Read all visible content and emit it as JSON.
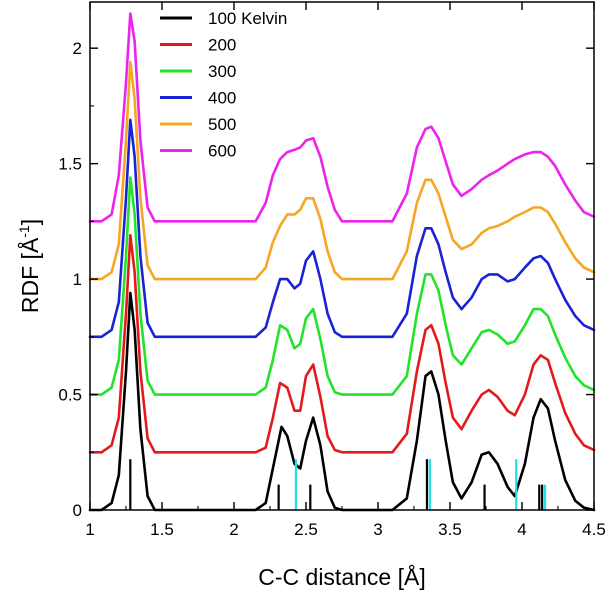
{
  "chart_data": {
    "type": "line",
    "xlabel": "C-C distance [Å]",
    "ylabel_main": "RDF [Å",
    "ylabel_sup": "-1",
    "ylabel_close": "]",
    "xlim": [
      1,
      4.5
    ],
    "ylim": [
      0,
      2.2
    ],
    "x_ticks": [
      1,
      1.5,
      2,
      2.5,
      3,
      3.5,
      4,
      4.5
    ],
    "x_tick_labels": [
      "1",
      "1.5",
      "2",
      "2.5",
      "3",
      "3.5",
      "4",
      "4.5"
    ],
    "y_ticks": [
      0,
      0.5,
      1,
      1.5,
      2
    ],
    "y_tick_labels": [
      "0",
      "0.5",
      "1",
      "1.5",
      "2"
    ],
    "legend_position": "top-left",
    "series": [
      {
        "name": "100 Kelvin",
        "color": "#000000",
        "offset": 0,
        "points": [
          [
            1.0,
            0
          ],
          [
            1.08,
            0
          ],
          [
            1.15,
            0.03
          ],
          [
            1.2,
            0.15
          ],
          [
            1.25,
            0.6
          ],
          [
            1.28,
            0.94
          ],
          [
            1.31,
            0.78
          ],
          [
            1.35,
            0.35
          ],
          [
            1.4,
            0.06
          ],
          [
            1.45,
            0
          ],
          [
            2.15,
            0
          ],
          [
            2.22,
            0.03
          ],
          [
            2.27,
            0.18
          ],
          [
            2.33,
            0.36
          ],
          [
            2.37,
            0.32
          ],
          [
            2.42,
            0.2
          ],
          [
            2.46,
            0.18
          ],
          [
            2.5,
            0.3
          ],
          [
            2.55,
            0.4
          ],
          [
            2.6,
            0.28
          ],
          [
            2.65,
            0.08
          ],
          [
            2.7,
            0.01
          ],
          [
            2.75,
            0
          ],
          [
            3.1,
            0
          ],
          [
            3.2,
            0.05
          ],
          [
            3.27,
            0.3
          ],
          [
            3.33,
            0.58
          ],
          [
            3.37,
            0.6
          ],
          [
            3.42,
            0.5
          ],
          [
            3.47,
            0.3
          ],
          [
            3.52,
            0.12
          ],
          [
            3.58,
            0.05
          ],
          [
            3.65,
            0.12
          ],
          [
            3.72,
            0.24
          ],
          [
            3.77,
            0.25
          ],
          [
            3.83,
            0.2
          ],
          [
            3.9,
            0.1
          ],
          [
            3.95,
            0.06
          ],
          [
            4.02,
            0.2
          ],
          [
            4.08,
            0.4
          ],
          [
            4.13,
            0.48
          ],
          [
            4.18,
            0.44
          ],
          [
            4.23,
            0.3
          ],
          [
            4.3,
            0.13
          ],
          [
            4.37,
            0.04
          ],
          [
            4.43,
            0.01
          ],
          [
            4.5,
            0
          ]
        ]
      },
      {
        "name": "200",
        "color": "#e31a1c",
        "offset": 0.25,
        "points": [
          [
            1.0,
            0
          ],
          [
            1.08,
            0
          ],
          [
            1.15,
            0.03
          ],
          [
            1.2,
            0.15
          ],
          [
            1.25,
            0.6
          ],
          [
            1.28,
            0.94
          ],
          [
            1.31,
            0.78
          ],
          [
            1.35,
            0.35
          ],
          [
            1.4,
            0.06
          ],
          [
            1.45,
            0
          ],
          [
            2.15,
            0
          ],
          [
            2.22,
            0.02
          ],
          [
            2.27,
            0.15
          ],
          [
            2.32,
            0.3
          ],
          [
            2.37,
            0.28
          ],
          [
            2.42,
            0.18
          ],
          [
            2.46,
            0.18
          ],
          [
            2.5,
            0.33
          ],
          [
            2.55,
            0.38
          ],
          [
            2.6,
            0.24
          ],
          [
            2.65,
            0.07
          ],
          [
            2.7,
            0.01
          ],
          [
            2.75,
            0
          ],
          [
            3.1,
            0
          ],
          [
            3.2,
            0.08
          ],
          [
            3.27,
            0.35
          ],
          [
            3.33,
            0.53
          ],
          [
            3.37,
            0.55
          ],
          [
            3.42,
            0.47
          ],
          [
            3.47,
            0.3
          ],
          [
            3.52,
            0.15
          ],
          [
            3.58,
            0.1
          ],
          [
            3.65,
            0.18
          ],
          [
            3.72,
            0.25
          ],
          [
            3.77,
            0.27
          ],
          [
            3.83,
            0.24
          ],
          [
            3.9,
            0.18
          ],
          [
            3.95,
            0.16
          ],
          [
            4.02,
            0.25
          ],
          [
            4.08,
            0.38
          ],
          [
            4.13,
            0.42
          ],
          [
            4.18,
            0.4
          ],
          [
            4.23,
            0.3
          ],
          [
            4.3,
            0.17
          ],
          [
            4.37,
            0.08
          ],
          [
            4.43,
            0.03
          ],
          [
            4.5,
            0.01
          ]
        ]
      },
      {
        "name": "300",
        "color": "#22e32a",
        "offset": 0.5,
        "points": [
          [
            1.0,
            0
          ],
          [
            1.08,
            0
          ],
          [
            1.15,
            0.03
          ],
          [
            1.2,
            0.15
          ],
          [
            1.25,
            0.6
          ],
          [
            1.28,
            0.94
          ],
          [
            1.31,
            0.78
          ],
          [
            1.35,
            0.35
          ],
          [
            1.4,
            0.06
          ],
          [
            1.45,
            0
          ],
          [
            2.15,
            0
          ],
          [
            2.22,
            0.03
          ],
          [
            2.27,
            0.15
          ],
          [
            2.32,
            0.3
          ],
          [
            2.37,
            0.28
          ],
          [
            2.42,
            0.2
          ],
          [
            2.46,
            0.22
          ],
          [
            2.5,
            0.33
          ],
          [
            2.55,
            0.37
          ],
          [
            2.6,
            0.24
          ],
          [
            2.65,
            0.08
          ],
          [
            2.7,
            0.01
          ],
          [
            2.75,
            0
          ],
          [
            3.1,
            0
          ],
          [
            3.2,
            0.08
          ],
          [
            3.27,
            0.35
          ],
          [
            3.33,
            0.52
          ],
          [
            3.37,
            0.52
          ],
          [
            3.42,
            0.45
          ],
          [
            3.47,
            0.3
          ],
          [
            3.52,
            0.17
          ],
          [
            3.58,
            0.13
          ],
          [
            3.65,
            0.2
          ],
          [
            3.72,
            0.27
          ],
          [
            3.77,
            0.28
          ],
          [
            3.83,
            0.26
          ],
          [
            3.9,
            0.22
          ],
          [
            3.95,
            0.23
          ],
          [
            4.02,
            0.3
          ],
          [
            4.08,
            0.37
          ],
          [
            4.13,
            0.37
          ],
          [
            4.18,
            0.34
          ],
          [
            4.23,
            0.26
          ],
          [
            4.3,
            0.16
          ],
          [
            4.37,
            0.08
          ],
          [
            4.43,
            0.04
          ],
          [
            4.5,
            0.02
          ]
        ]
      },
      {
        "name": "400",
        "color": "#1a22d8",
        "offset": 0.75,
        "points": [
          [
            1.0,
            0
          ],
          [
            1.08,
            0
          ],
          [
            1.15,
            0.03
          ],
          [
            1.2,
            0.15
          ],
          [
            1.25,
            0.6
          ],
          [
            1.28,
            0.94
          ],
          [
            1.31,
            0.78
          ],
          [
            1.35,
            0.35
          ],
          [
            1.4,
            0.06
          ],
          [
            1.45,
            0
          ],
          [
            2.15,
            0
          ],
          [
            2.22,
            0.04
          ],
          [
            2.27,
            0.15
          ],
          [
            2.32,
            0.25
          ],
          [
            2.37,
            0.25
          ],
          [
            2.42,
            0.21
          ],
          [
            2.46,
            0.23
          ],
          [
            2.5,
            0.33
          ],
          [
            2.55,
            0.37
          ],
          [
            2.6,
            0.25
          ],
          [
            2.65,
            0.1
          ],
          [
            2.7,
            0.02
          ],
          [
            2.75,
            0
          ],
          [
            3.1,
            0
          ],
          [
            3.2,
            0.1
          ],
          [
            3.27,
            0.35
          ],
          [
            3.33,
            0.47
          ],
          [
            3.37,
            0.47
          ],
          [
            3.42,
            0.4
          ],
          [
            3.47,
            0.28
          ],
          [
            3.52,
            0.17
          ],
          [
            3.58,
            0.12
          ],
          [
            3.65,
            0.17
          ],
          [
            3.72,
            0.25
          ],
          [
            3.77,
            0.27
          ],
          [
            3.83,
            0.27
          ],
          [
            3.9,
            0.24
          ],
          [
            3.95,
            0.25
          ],
          [
            4.02,
            0.3
          ],
          [
            4.08,
            0.34
          ],
          [
            4.13,
            0.35
          ],
          [
            4.18,
            0.32
          ],
          [
            4.23,
            0.25
          ],
          [
            4.3,
            0.16
          ],
          [
            4.37,
            0.09
          ],
          [
            4.43,
            0.05
          ],
          [
            4.5,
            0.03
          ]
        ]
      },
      {
        "name": "500",
        "color": "#f5a623",
        "offset": 1.0,
        "points": [
          [
            1.0,
            0
          ],
          [
            1.08,
            0
          ],
          [
            1.15,
            0.03
          ],
          [
            1.2,
            0.15
          ],
          [
            1.25,
            0.6
          ],
          [
            1.28,
            0.94
          ],
          [
            1.31,
            0.78
          ],
          [
            1.35,
            0.35
          ],
          [
            1.4,
            0.06
          ],
          [
            1.45,
            0
          ],
          [
            2.15,
            0
          ],
          [
            2.22,
            0.05
          ],
          [
            2.27,
            0.16
          ],
          [
            2.32,
            0.23
          ],
          [
            2.37,
            0.28
          ],
          [
            2.42,
            0.28
          ],
          [
            2.46,
            0.3
          ],
          [
            2.5,
            0.35
          ],
          [
            2.55,
            0.35
          ],
          [
            2.6,
            0.26
          ],
          [
            2.65,
            0.12
          ],
          [
            2.7,
            0.03
          ],
          [
            2.75,
            0
          ],
          [
            3.1,
            0
          ],
          [
            3.2,
            0.12
          ],
          [
            3.27,
            0.33
          ],
          [
            3.33,
            0.43
          ],
          [
            3.37,
            0.43
          ],
          [
            3.42,
            0.37
          ],
          [
            3.47,
            0.27
          ],
          [
            3.52,
            0.17
          ],
          [
            3.58,
            0.13
          ],
          [
            3.65,
            0.15
          ],
          [
            3.72,
            0.2
          ],
          [
            3.77,
            0.22
          ],
          [
            3.83,
            0.23
          ],
          [
            3.9,
            0.25
          ],
          [
            3.95,
            0.27
          ],
          [
            4.02,
            0.29
          ],
          [
            4.08,
            0.31
          ],
          [
            4.13,
            0.31
          ],
          [
            4.18,
            0.29
          ],
          [
            4.23,
            0.24
          ],
          [
            4.3,
            0.16
          ],
          [
            4.37,
            0.09
          ],
          [
            4.43,
            0.05
          ],
          [
            4.5,
            0.03
          ]
        ]
      },
      {
        "name": "600",
        "color": "#ee22ee",
        "offset": 1.25,
        "points": [
          [
            1.0,
            0
          ],
          [
            1.08,
            0
          ],
          [
            1.15,
            0.03
          ],
          [
            1.2,
            0.2
          ],
          [
            1.25,
            0.6
          ],
          [
            1.28,
            0.9
          ],
          [
            1.31,
            0.78
          ],
          [
            1.35,
            0.35
          ],
          [
            1.4,
            0.06
          ],
          [
            1.45,
            0
          ],
          [
            2.15,
            0
          ],
          [
            2.22,
            0.08
          ],
          [
            2.27,
            0.2
          ],
          [
            2.32,
            0.27
          ],
          [
            2.37,
            0.3
          ],
          [
            2.42,
            0.31
          ],
          [
            2.46,
            0.32
          ],
          [
            2.5,
            0.35
          ],
          [
            2.55,
            0.36
          ],
          [
            2.6,
            0.28
          ],
          [
            2.65,
            0.15
          ],
          [
            2.7,
            0.05
          ],
          [
            2.75,
            0
          ],
          [
            3.1,
            0
          ],
          [
            3.2,
            0.12
          ],
          [
            3.27,
            0.32
          ],
          [
            3.33,
            0.4
          ],
          [
            3.37,
            0.41
          ],
          [
            3.42,
            0.36
          ],
          [
            3.47,
            0.26
          ],
          [
            3.52,
            0.16
          ],
          [
            3.58,
            0.11
          ],
          [
            3.65,
            0.14
          ],
          [
            3.72,
            0.18
          ],
          [
            3.77,
            0.2
          ],
          [
            3.83,
            0.22
          ],
          [
            3.9,
            0.25
          ],
          [
            3.95,
            0.27
          ],
          [
            4.02,
            0.29
          ],
          [
            4.08,
            0.3
          ],
          [
            4.13,
            0.3
          ],
          [
            4.18,
            0.28
          ],
          [
            4.23,
            0.24
          ],
          [
            4.3,
            0.16
          ],
          [
            4.37,
            0.09
          ],
          [
            4.43,
            0.04
          ],
          [
            4.5,
            0.02
          ]
        ]
      }
    ],
    "sticks": [
      {
        "x": 1.28,
        "height": 0.22,
        "color": "#000000"
      },
      {
        "x": 2.31,
        "height": 0.11,
        "color": "#000000"
      },
      {
        "x": 2.43,
        "height": 0.22,
        "color": "#1de0e8"
      },
      {
        "x": 2.53,
        "height": 0.11,
        "color": "#000000"
      },
      {
        "x": 3.34,
        "height": 0.22,
        "color": "#000000"
      },
      {
        "x": 3.36,
        "height": 0.22,
        "color": "#1de0e8"
      },
      {
        "x": 3.74,
        "height": 0.11,
        "color": "#000000"
      },
      {
        "x": 3.96,
        "height": 0.22,
        "color": "#1de0e8"
      },
      {
        "x": 4.12,
        "height": 0.11,
        "color": "#000000"
      },
      {
        "x": 4.14,
        "height": 0.11,
        "color": "#000000"
      },
      {
        "x": 4.16,
        "height": 0.11,
        "color": "#1de0e8"
      }
    ]
  }
}
